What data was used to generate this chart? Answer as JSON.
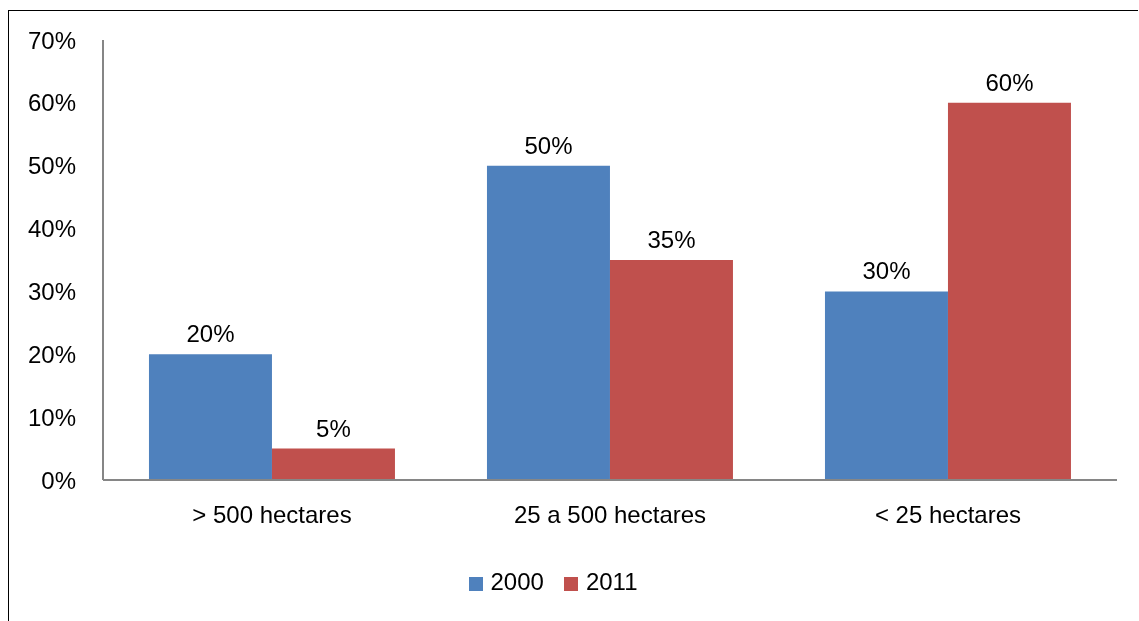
{
  "chart_data": {
    "type": "bar",
    "categories": [
      "> 500 hectares",
      "25 a 500 hectares",
      "< 25 hectares"
    ],
    "series": [
      {
        "name": "2000",
        "color": "#4f81bd",
        "values": [
          20,
          50,
          30
        ],
        "value_labels": [
          "20%",
          "50%",
          "30%"
        ]
      },
      {
        "name": "2011",
        "color": "#c0504d",
        "values": [
          5,
          35,
          60
        ],
        "value_labels": [
          "5%",
          "35%",
          "60%"
        ]
      }
    ],
    "ylim": [
      0,
      70
    ],
    "yticks": [
      {
        "value": 0,
        "label": "0%"
      },
      {
        "value": 10,
        "label": "10%"
      },
      {
        "value": 20,
        "label": "20%"
      },
      {
        "value": 30,
        "label": "30%"
      },
      {
        "value": 40,
        "label": "40%"
      },
      {
        "value": 50,
        "label": "50%"
      },
      {
        "value": 60,
        "label": "60%"
      },
      {
        "value": 70,
        "label": "70%"
      }
    ],
    "grid": false,
    "legend": "bottom"
  }
}
